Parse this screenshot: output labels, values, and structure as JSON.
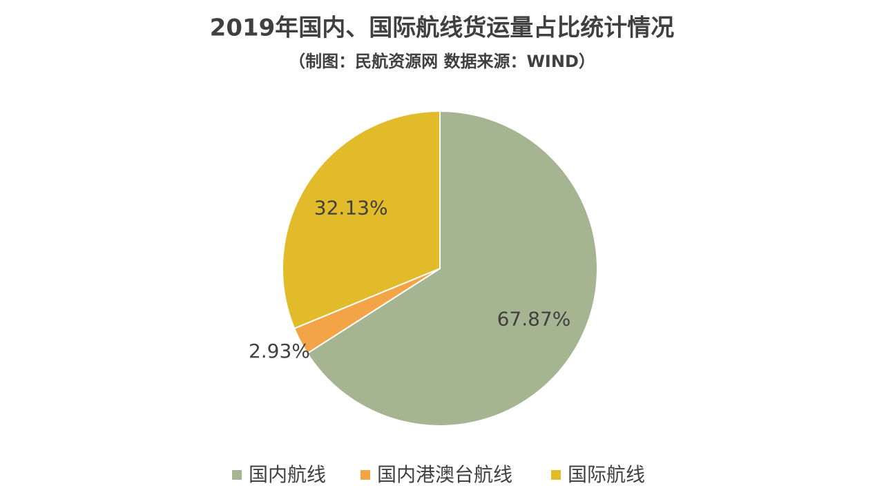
{
  "chart_data": {
    "type": "pie",
    "title": "2019年国内、国际航线货运量占比统计情况",
    "subtitle": "（制图：民航资源网 数据来源：WIND）",
    "categories": [
      "国内航线",
      "国内港澳台航线",
      "国际航线"
    ],
    "values": [
      67.87,
      2.93,
      32.13
    ],
    "value_labels": [
      "67.87%",
      "2.93%",
      "32.13%"
    ],
    "colors": [
      "#a5b592",
      "#f3a447",
      "#e2bb2a"
    ],
    "legend": "bottom"
  }
}
